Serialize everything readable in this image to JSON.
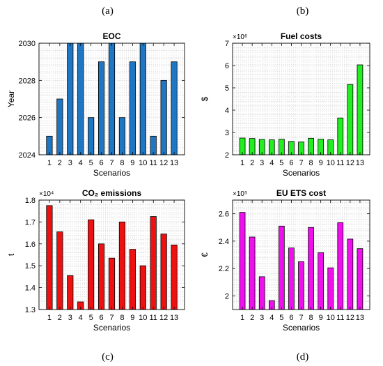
{
  "chart_data": [
    {
      "panel_label": "(a)",
      "type": "bar",
      "title": "EOC",
      "xlabel": "Scenarios",
      "ylabel": "Year",
      "categories": [
        "1",
        "2",
        "3",
        "4",
        "5",
        "6",
        "7",
        "8",
        "9",
        "10",
        "11",
        "12",
        "13"
      ],
      "values": [
        2025,
        2027,
        2030,
        2030,
        2026,
        2029,
        2030,
        2026,
        2029,
        2030,
        2025,
        2028,
        2029
      ],
      "ylim": [
        2024,
        2030
      ],
      "yticks": [
        2024,
        2026,
        2028,
        2030
      ],
      "ytick_labels": [
        "2024",
        "2026",
        "2028",
        "2030"
      ],
      "multiplier": "",
      "bar_color": "#1f77c4",
      "grid": true
    },
    {
      "panel_label": "(b)",
      "type": "bar",
      "title": "Fuel costs",
      "xlabel": "Scenarios",
      "ylabel": "$",
      "categories": [
        "1",
        "2",
        "3",
        "4",
        "5",
        "6",
        "7",
        "8",
        "9",
        "10",
        "11",
        "12",
        "13"
      ],
      "values": [
        2.75,
        2.73,
        2.69,
        2.67,
        2.7,
        2.6,
        2.57,
        2.74,
        2.7,
        2.67,
        3.65,
        5.15,
        6.03
      ],
      "ylim": [
        2,
        7
      ],
      "yticks": [
        2,
        3,
        4,
        5,
        6,
        7
      ],
      "ytick_labels": [
        "2",
        "3",
        "4",
        "5",
        "6",
        "7"
      ],
      "multiplier": "×10⁶",
      "bar_color": "#22ee22",
      "grid": true
    },
    {
      "panel_label": "(c)",
      "type": "bar",
      "title": "CO₂ emissions",
      "xlabel": "Scenarios",
      "ylabel": "t",
      "categories": [
        "1",
        "2",
        "3",
        "4",
        "5",
        "6",
        "7",
        "8",
        "9",
        "10",
        "11",
        "12",
        "13"
      ],
      "values": [
        1.775,
        1.655,
        1.455,
        1.335,
        1.71,
        1.6,
        1.535,
        1.7,
        1.575,
        1.5,
        1.725,
        1.645,
        1.595
      ],
      "ylim": [
        1.3,
        1.8
      ],
      "yticks": [
        1.3,
        1.4,
        1.5,
        1.6,
        1.7,
        1.8
      ],
      "ytick_labels": [
        "1.3",
        "1.4",
        "1.5",
        "1.6",
        "1.7",
        "1.8"
      ],
      "multiplier": "×10⁴",
      "bar_color": "#ee1111",
      "grid": true
    },
    {
      "panel_label": "(d)",
      "type": "bar",
      "title": "EU ETS cost",
      "xlabel": "Scenarios",
      "ylabel": "€",
      "categories": [
        "1",
        "2",
        "3",
        "4",
        "5",
        "6",
        "7",
        "8",
        "9",
        "10",
        "11",
        "12",
        "13"
      ],
      "values": [
        2.61,
        2.43,
        2.14,
        1.965,
        2.51,
        2.35,
        2.25,
        2.5,
        2.315,
        2.205,
        2.535,
        2.415,
        2.345
      ],
      "ylim": [
        1.9,
        2.7
      ],
      "yticks": [
        2.0,
        2.2,
        2.4,
        2.6
      ],
      "ytick_labels": [
        "2",
        "2.2",
        "2.4",
        "2.6"
      ],
      "multiplier": "×10⁵",
      "bar_color": "#ee11ee",
      "grid": true
    }
  ]
}
